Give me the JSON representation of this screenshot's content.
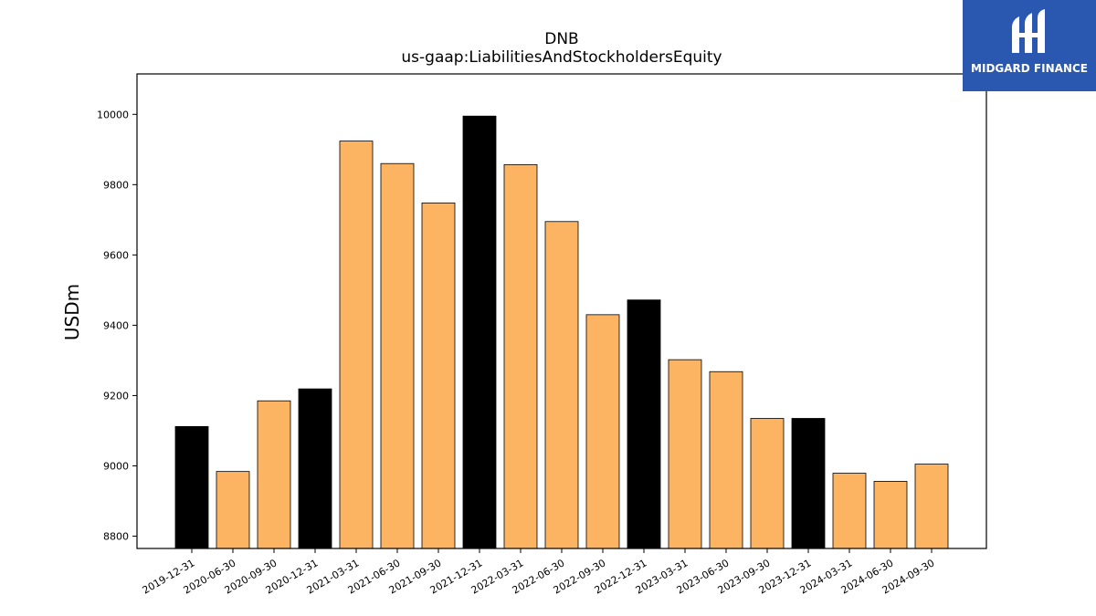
{
  "brand": {
    "name": "MIDGARD FINANCE",
    "background": "#2a58b0"
  },
  "chart_data": {
    "type": "bar",
    "title": "DNB",
    "subtitle": "us-gaap:LiabilitiesAndStockholdersEquity",
    "xlabel": "",
    "ylabel": "USDm",
    "ylim": [
      8765,
      10115
    ],
    "yticks": [
      8800,
      9000,
      9200,
      9400,
      9600,
      9800,
      10000
    ],
    "grid": false,
    "categories": [
      "2019-12-31",
      "2020-06-30",
      "2020-09-30",
      "2020-12-31",
      "2021-03-31",
      "2021-06-30",
      "2021-09-30",
      "2021-12-31",
      "2022-03-31",
      "2022-06-30",
      "2022-09-30",
      "2022-12-31",
      "2023-03-31",
      "2023-06-30",
      "2023-09-30",
      "2023-12-31",
      "2024-03-31",
      "2024-06-30",
      "2024-09-30"
    ],
    "values": [
      9112,
      8984,
      9185,
      9219,
      9924,
      9860,
      9748,
      9995,
      9857,
      9695,
      9430,
      9472,
      9302,
      9268,
      9135,
      9135,
      8979,
      8956,
      9005
    ],
    "is_annual": [
      true,
      false,
      false,
      true,
      false,
      false,
      false,
      true,
      false,
      false,
      false,
      true,
      false,
      false,
      false,
      true,
      false,
      false,
      false
    ],
    "colors": {
      "annual": "#000000",
      "quarterly": "#fdb462",
      "edge": "#000000"
    }
  }
}
